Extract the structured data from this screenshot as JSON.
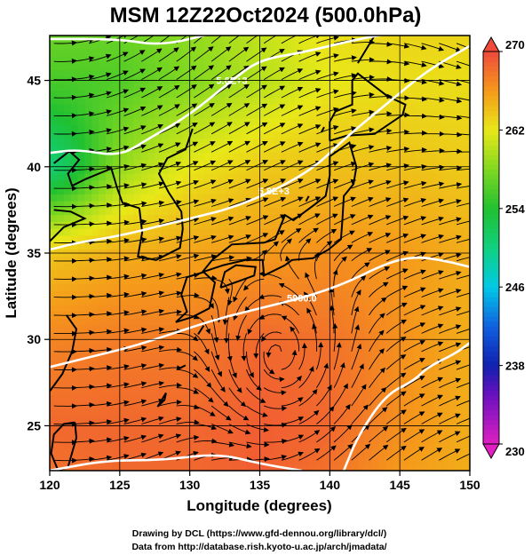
{
  "chart_data": {
    "type": "heatmap",
    "title": "MSM 12Z22Oct2024 (500.0hPa)",
    "xlabel": "Longitude (degrees)",
    "ylabel": "Latitude  (degrees)",
    "xlim": [
      120,
      150
    ],
    "ylim": [
      22.4,
      47.6
    ],
    "x_ticks": [
      "120",
      "125",
      "130",
      "135",
      "140",
      "145",
      "150"
    ],
    "y_ticks": [
      "25",
      "30",
      "35",
      "40",
      "45"
    ],
    "colorbar": {
      "range": [
        230,
        270
      ],
      "ticks": [
        "230",
        "238",
        "246",
        "254",
        "262",
        "270"
      ],
      "stops": [
        {
          "value": 230,
          "color": "#e020c0"
        },
        {
          "value": 235,
          "color": "#6a10c0"
        },
        {
          "value": 238,
          "color": "#1020b0"
        },
        {
          "value": 242,
          "color": "#1060e0"
        },
        {
          "value": 246,
          "color": "#00c8e6"
        },
        {
          "value": 250,
          "color": "#10d080"
        },
        {
          "value": 254,
          "color": "#20c030"
        },
        {
          "value": 258,
          "color": "#80d820"
        },
        {
          "value": 262,
          "color": "#e8e818"
        },
        {
          "value": 266,
          "color": "#f59a1a"
        },
        {
          "value": 270,
          "color": "#ef4a3a"
        }
      ]
    },
    "temperature_field_K": {
      "lon": [
        120,
        125,
        130,
        135,
        140,
        145,
        150
      ],
      "lat": [
        22.4,
        25,
        30,
        35,
        40,
        45,
        47.6
      ],
      "values": [
        [
          268.0,
          268.5,
          268.5,
          269.0,
          268.0,
          266.0,
          265.0
        ],
        [
          268.5,
          268.5,
          268.5,
          269.0,
          268.5,
          266.5,
          265.0
        ],
        [
          267.0,
          267.5,
          267.5,
          268.5,
          268.0,
          266.5,
          265.0
        ],
        [
          264.0,
          265.0,
          265.5,
          266.0,
          266.5,
          266.0,
          265.0
        ],
        [
          254.0,
          259.0,
          262.0,
          263.5,
          264.0,
          264.0,
          263.5
        ],
        [
          256.0,
          256.0,
          258.0,
          260.0,
          262.0,
          262.5,
          262.5
        ],
        [
          257.0,
          257.0,
          258.5,
          260.5,
          262.5,
          263.0,
          263.0
        ]
      ]
    },
    "height_contours_m": [
      {
        "label": "",
        "points": [
          [
            120,
            47.4
          ],
          [
            125,
            47.4
          ],
          [
            128,
            47.0
          ],
          [
            132,
            47.8
          ]
        ]
      },
      {
        "label": "5.6E+3",
        "points": [
          [
            120,
            40.8
          ],
          [
            122,
            41.0
          ],
          [
            125,
            40.6
          ],
          [
            127,
            41.6
          ],
          [
            130,
            43.0
          ],
          [
            133,
            45.0
          ],
          [
            135,
            46.2
          ],
          [
            138,
            46.6
          ],
          [
            142,
            47.4
          ],
          [
            145,
            47.8
          ]
        ]
      },
      {
        "label": "5.8E+3",
        "points": [
          [
            120,
            35.2
          ],
          [
            122,
            35.6
          ],
          [
            125,
            36.0
          ],
          [
            128,
            36.6
          ],
          [
            130,
            37.0
          ],
          [
            133,
            37.6
          ],
          [
            136,
            38.6
          ],
          [
            139,
            40.0
          ],
          [
            141,
            41.6
          ],
          [
            144,
            43.6
          ],
          [
            147,
            45.6
          ],
          [
            150,
            47.0
          ]
        ]
      },
      {
        "label": "5900.0",
        "points": [
          [
            120,
            28.4
          ],
          [
            123,
            29.0
          ],
          [
            126,
            29.6
          ],
          [
            129,
            30.4
          ],
          [
            132,
            31.2
          ],
          [
            135,
            31.8
          ],
          [
            138,
            32.4
          ],
          [
            141,
            33.2
          ],
          [
            144,
            34.4
          ],
          [
            146,
            34.8
          ],
          [
            148,
            34.6
          ],
          [
            150,
            34.2
          ]
        ]
      },
      {
        "label": "",
        "points": [
          [
            120,
            22.4
          ],
          [
            124,
            23.0
          ],
          [
            128,
            23.0
          ],
          [
            132,
            23.4
          ],
          [
            135,
            22.8
          ],
          [
            138,
            22.4
          ]
        ]
      },
      {
        "label": "",
        "points": [
          [
            141,
            22.4
          ],
          [
            142,
            24.4
          ],
          [
            144,
            26.8
          ],
          [
            146,
            27.6
          ],
          [
            147,
            28.4
          ],
          [
            149,
            29.2
          ],
          [
            150,
            29.8
          ]
        ]
      }
    ],
    "low_center": {
      "lon": 136.5,
      "lat": 28.8
    },
    "grid": true
  },
  "credits": {
    "line1": "Drawing by DCL (https://www.gfd-dennou.org/library/dcl/)",
    "line2": "Data from http://database.rish.kyoto-u.ac.jp/arch/jmadata/"
  }
}
